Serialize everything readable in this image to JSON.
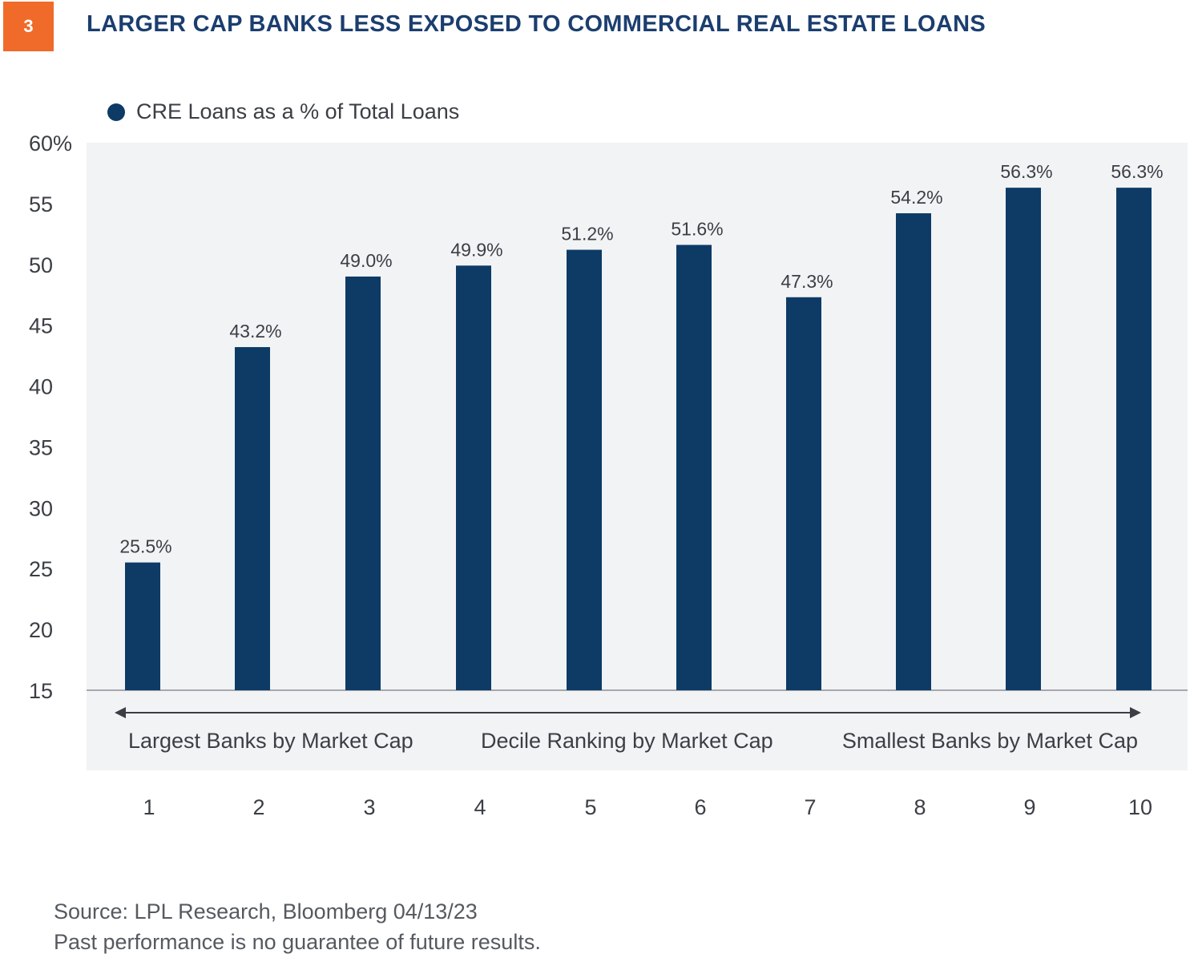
{
  "header": {
    "badge": "3",
    "title": "LARGER CAP BANKS LESS EXPOSED TO COMMERCIAL REAL ESTATE LOANS"
  },
  "legend": {
    "label": "CRE Loans as a % of Total Loans"
  },
  "colors": {
    "bar": "#0d3b66",
    "plot_bg": "#f2f3f5",
    "badge": "#f06a2a",
    "title": "#1b3e6f"
  },
  "chart_data": {
    "type": "bar",
    "categories": [
      "1",
      "2",
      "3",
      "4",
      "5",
      "6",
      "7",
      "8",
      "9",
      "10"
    ],
    "series": [
      {
        "name": "CRE Loans as a % of Total Loans",
        "values": [
          25.5,
          43.2,
          49.0,
          49.9,
          51.2,
          51.6,
          47.3,
          54.2,
          56.3,
          56.3
        ]
      }
    ],
    "data_labels": [
      "25.5%",
      "43.2%",
      "49.0%",
      "49.9%",
      "51.2%",
      "51.6%",
      "47.3%",
      "54.2%",
      "56.3%",
      "56.3%"
    ],
    "yticks": [
      "60%",
      "55",
      "50",
      "45",
      "40",
      "35",
      "30",
      "25",
      "20",
      "15"
    ],
    "ylim": [
      15,
      60
    ],
    "axis_annotation": {
      "left": "Largest Banks by Market Cap",
      "center": "Decile Ranking by Market Cap",
      "right": "Smallest Banks by Market Cap"
    },
    "legend_position": "top-left",
    "grid": false
  },
  "footer": {
    "source": "Source: LPL Research, Bloomberg  04/13/23",
    "disclaimer": "Past performance is no guarantee of future results."
  }
}
